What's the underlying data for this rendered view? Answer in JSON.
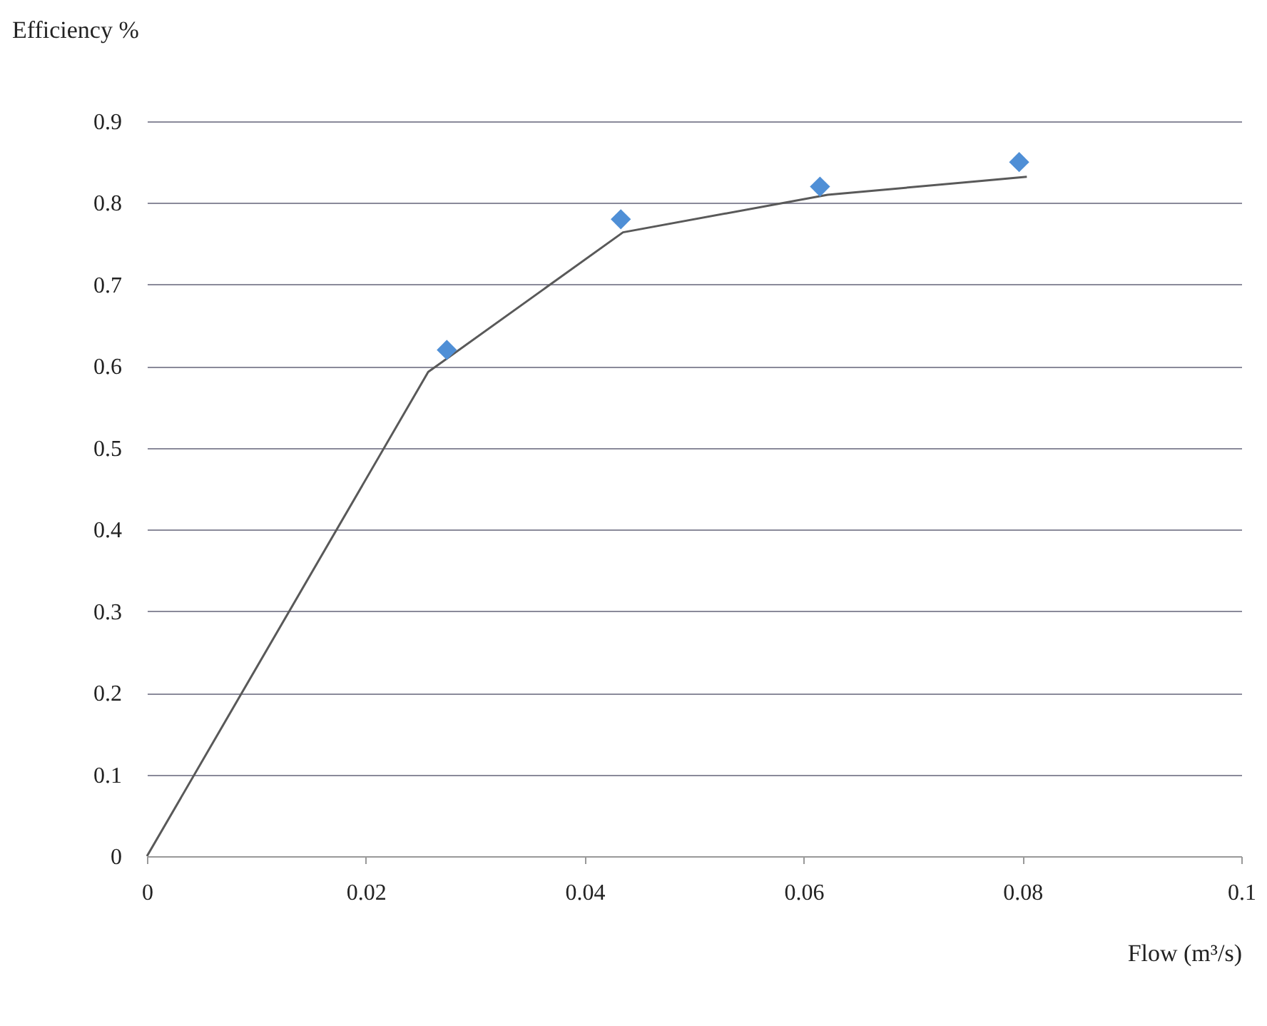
{
  "chart_data": {
    "type": "scatter",
    "xlabel": "Flow (m³/s)",
    "ylabel": "Efficiency %",
    "xlim": [
      0,
      0.1
    ],
    "xticks": [
      0,
      0.02,
      0.04,
      0.06,
      0.08,
      0.1
    ],
    "ylim": [
      0,
      0.9
    ],
    "yticks": [
      0,
      0.1,
      0.2,
      0.3,
      0.4,
      0.5,
      0.6,
      0.7,
      0.8,
      0.9
    ],
    "grid": "y",
    "series": [
      {
        "type": "line",
        "marker": "none",
        "color": "#595959",
        "x": [
          0,
          0.0257,
          0.0435,
          0.0622,
          0.0804
        ],
        "values": [
          0,
          0.593,
          0.764,
          0.81,
          0.832
        ]
      },
      {
        "marker": "diamond",
        "color": "#4f8fd6",
        "x": [
          0.0274,
          0.0433,
          0.0615,
          0.0797
        ],
        "values": [
          0.62,
          0.78,
          0.82,
          0.85
        ]
      }
    ]
  }
}
